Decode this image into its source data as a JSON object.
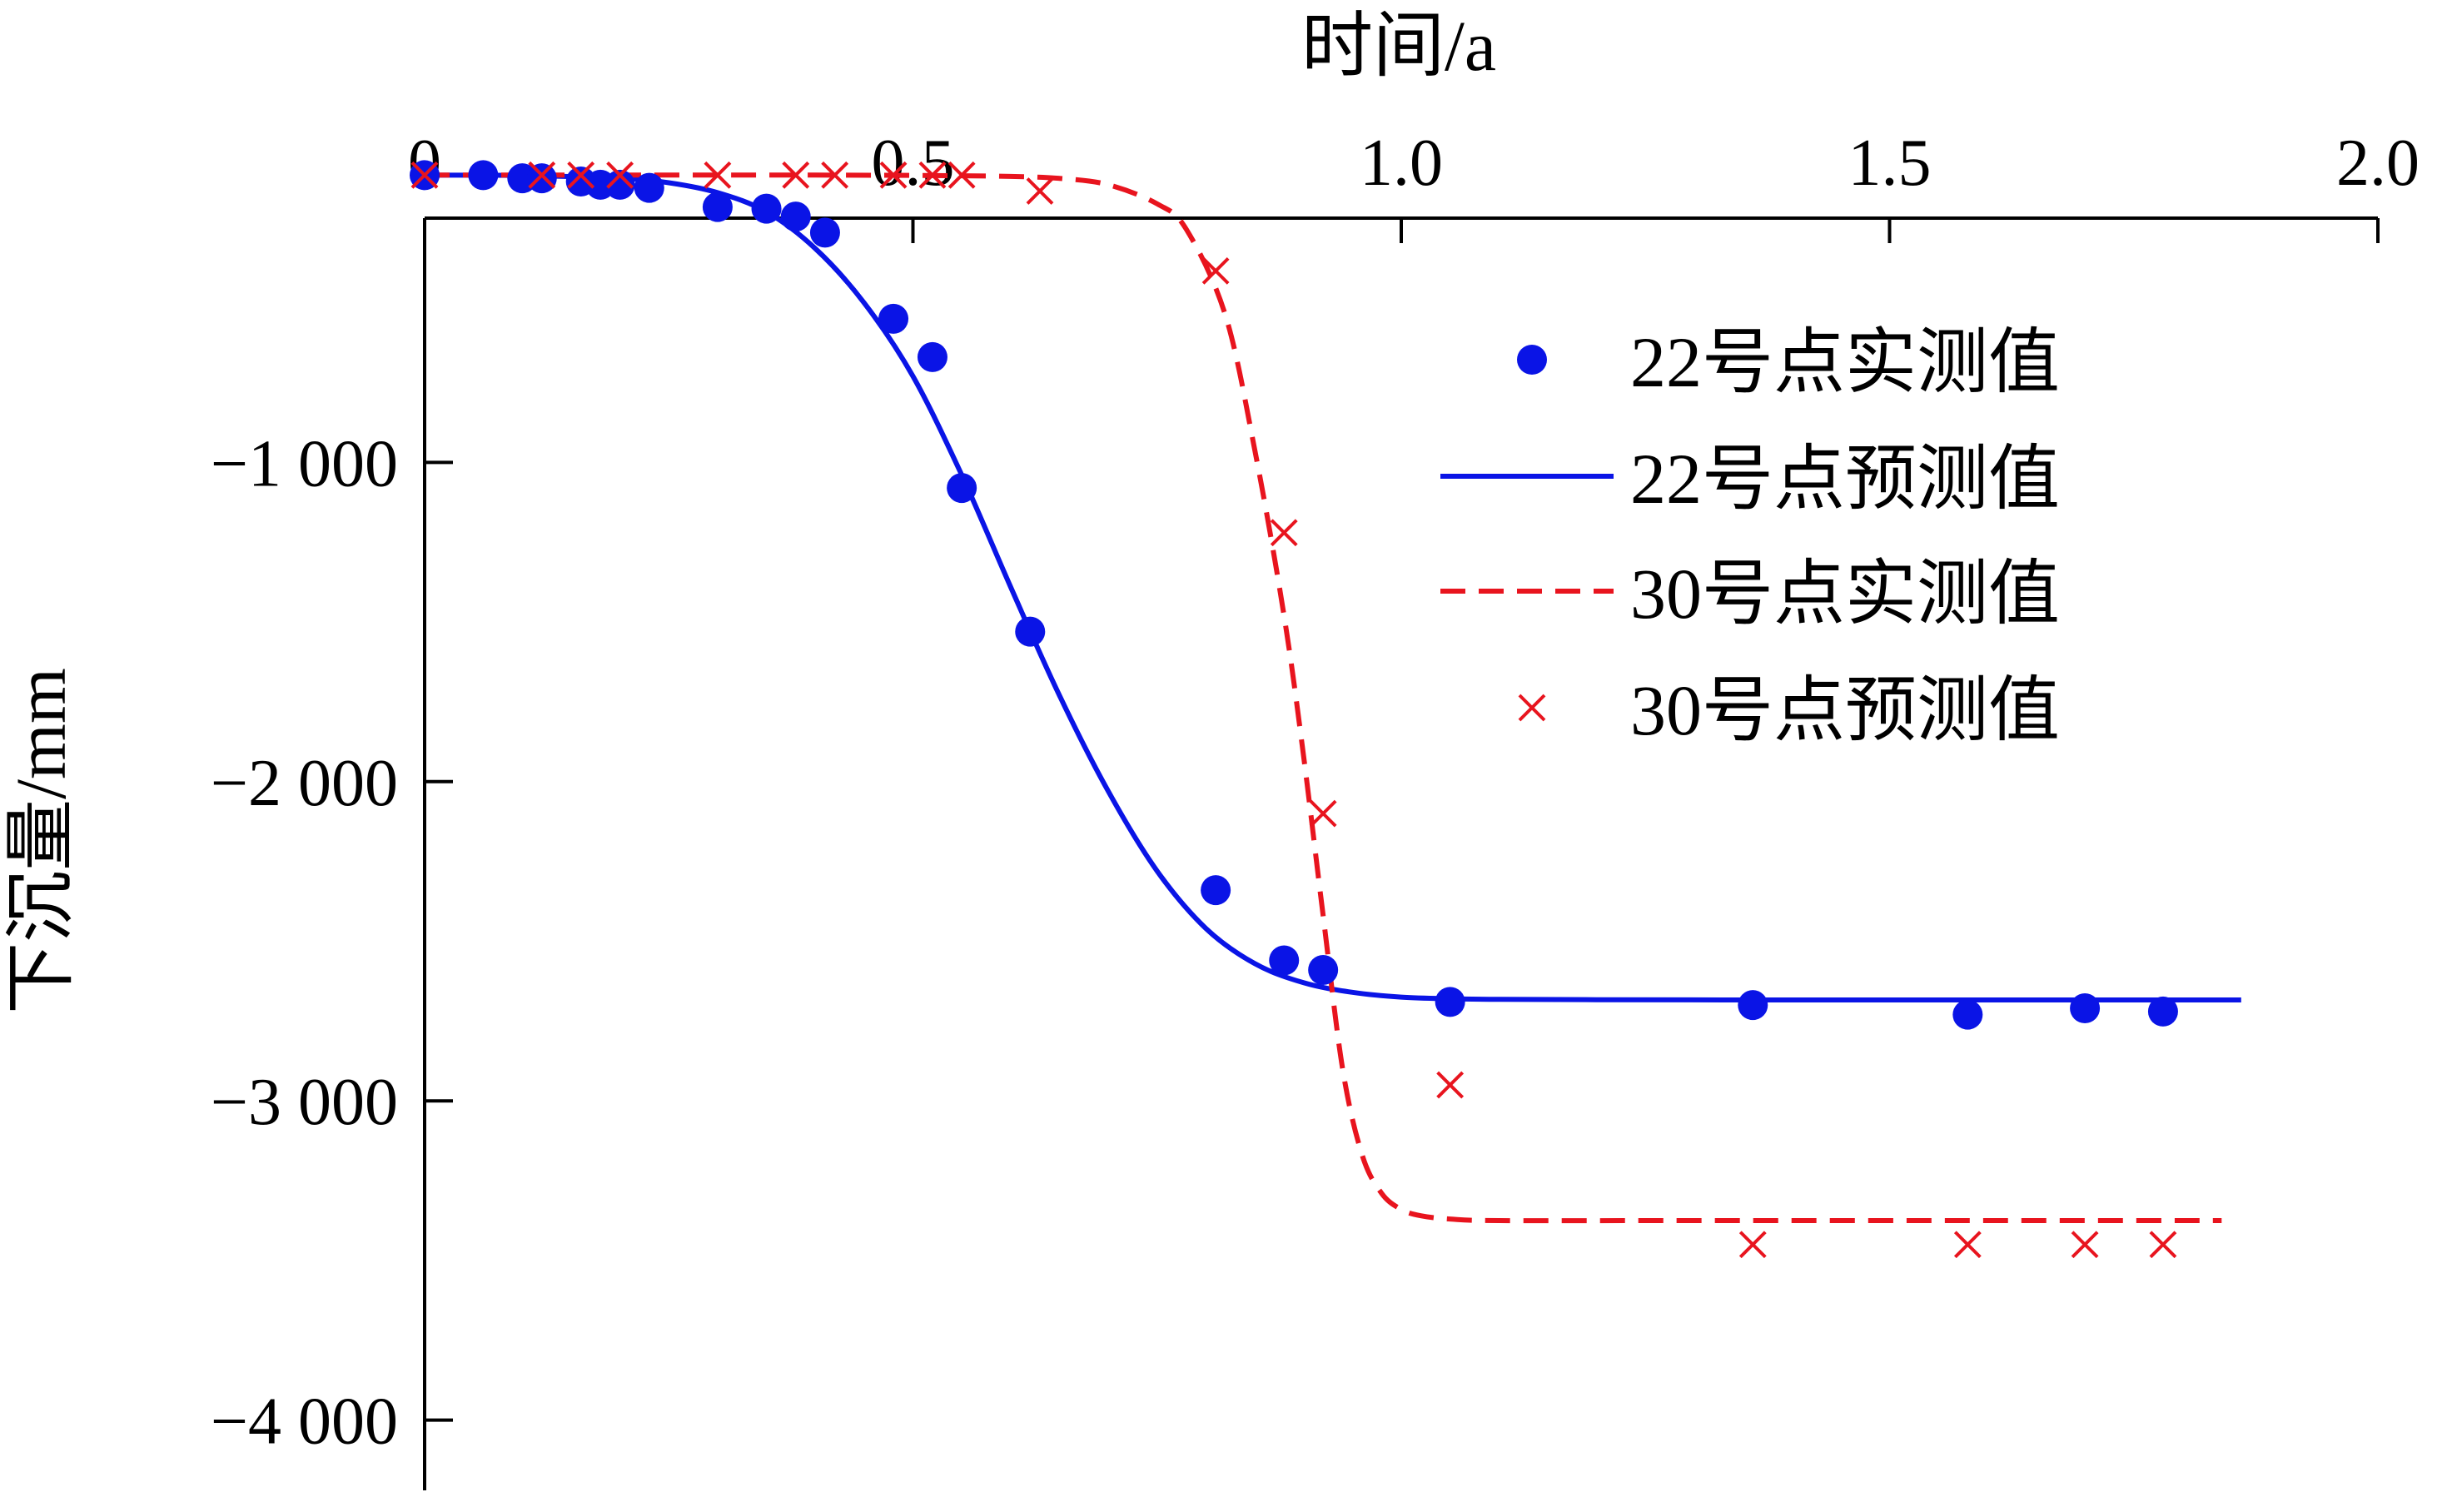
{
  "chart_data": {
    "type": "line",
    "title": "",
    "xlabel": "时间/a",
    "ylabel": "下沉量/mm",
    "xlim": [
      0,
      2.0
    ],
    "ylim": [
      -4000,
      200
    ],
    "x_axis_position": "top",
    "y_axis_inverted": false,
    "grid": false,
    "legend_placement": "top-right",
    "x_ticks": [
      {
        "value": 0,
        "label": "0"
      },
      {
        "value": 0.5,
        "label": "0.5"
      },
      {
        "value": 1.0,
        "label": "1.0"
      },
      {
        "value": 1.5,
        "label": "1.5"
      },
      {
        "value": 2.0,
        "label": "2.0"
      }
    ],
    "y_ticks": [
      {
        "value": -1000,
        "label": "−1 000"
      },
      {
        "value": -2000,
        "label": "−2 000"
      },
      {
        "value": -3000,
        "label": "−3 000"
      },
      {
        "value": -4000,
        "label": "−4 000"
      }
    ],
    "series": [
      {
        "name": "22号点实测值",
        "kind": "scatter",
        "marker": "circle",
        "color": "#0a14e6",
        "x": [
          0.0,
          0.06,
          0.1,
          0.12,
          0.16,
          0.18,
          0.2,
          0.23,
          0.3,
          0.35,
          0.38,
          0.41,
          0.48,
          0.52,
          0.55,
          0.62,
          0.81,
          0.88,
          0.92,
          1.05,
          1.36,
          1.58,
          1.7,
          1.78
        ],
        "y": [
          -100,
          -100,
          -110,
          -110,
          -120,
          -130,
          -130,
          -140,
          -200,
          -205,
          -230,
          -280,
          -550,
          -670,
          -1080,
          -1530,
          -2340,
          -2560,
          -2590,
          -2690,
          -2700,
          -2730,
          -2710,
          -2720
        ]
      },
      {
        "name": "22号点预测值",
        "kind": "line",
        "style": "solid",
        "color": "#0a14e6",
        "x": [
          0.0,
          0.1,
          0.2,
          0.25,
          0.3,
          0.35,
          0.4,
          0.45,
          0.5,
          0.55,
          0.6,
          0.65,
          0.7,
          0.75,
          0.8,
          0.85,
          0.9,
          0.95,
          1.0,
          1.05,
          1.1,
          1.2,
          1.4,
          1.6,
          1.86
        ],
        "y": [
          -100,
          -101,
          -110,
          -124,
          -155,
          -215,
          -330,
          -500,
          -730,
          -1040,
          -1390,
          -1730,
          -2030,
          -2280,
          -2460,
          -2570,
          -2630,
          -2660,
          -2675,
          -2680,
          -2682,
          -2683,
          -2684,
          -2684,
          -2684
        ]
      },
      {
        "name": "30号点实测值",
        "kind": "line",
        "style": "dashed",
        "color": "#e8141e",
        "x": [
          0.0,
          0.2,
          0.4,
          0.5,
          0.55,
          0.6,
          0.65,
          0.7,
          0.75,
          0.78,
          0.82,
          0.85,
          0.88,
          0.9,
          0.92,
          0.94,
          0.96,
          0.98,
          1.0,
          1.02,
          1.05,
          1.1,
          1.3,
          1.6,
          1.84
        ],
        "y": [
          -100,
          -100,
          -100,
          -101,
          -102,
          -104,
          -110,
          -130,
          -190,
          -270,
          -540,
          -960,
          -1480,
          -1920,
          -2420,
          -2900,
          -3170,
          -3290,
          -3340,
          -3360,
          -3370,
          -3375,
          -3375,
          -3375,
          -3375
        ]
      },
      {
        "name": "30号点预测值",
        "kind": "scatter",
        "marker": "x",
        "color": "#e8141e",
        "x": [
          0.0,
          0.12,
          0.16,
          0.2,
          0.3,
          0.38,
          0.42,
          0.48,
          0.52,
          0.55,
          0.63,
          0.81,
          0.88,
          0.92,
          1.05,
          1.36,
          1.58,
          1.7,
          1.78
        ],
        "y": [
          -100,
          -100,
          -100,
          -100,
          -100,
          -100,
          -100,
          -100,
          -100,
          -100,
          -150,
          -400,
          -1220,
          -2100,
          -2950,
          -3450,
          -3450,
          -3450,
          -3450
        ]
      }
    ]
  }
}
